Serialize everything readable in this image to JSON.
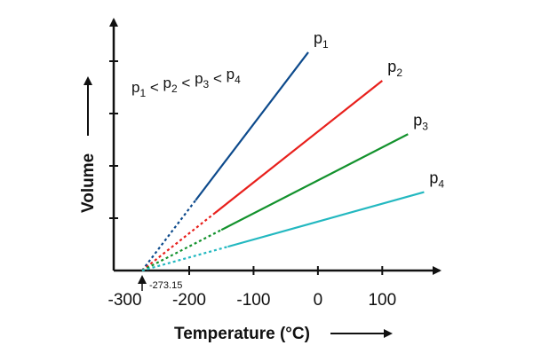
{
  "chart_data": {
    "type": "line",
    "title": "",
    "xlabel": "Temperature (°C)",
    "ylabel": "Volume",
    "xlim": [
      -300,
      170
    ],
    "ylim": [
      0,
      1
    ],
    "x_ticks": [
      -300,
      -200,
      -100,
      0,
      100
    ],
    "x_tick_labels": [
      "-300",
      "-200",
      "-100",
      "0",
      "100"
    ],
    "y_tick_count": 4,
    "grid": false,
    "extrapolation_origin": {
      "x": -273.15,
      "label": "-273.15"
    },
    "relation": {
      "symbol": "p",
      "subscripts": [
        "1",
        "2",
        "3",
        "4"
      ],
      "separator": "<"
    },
    "series": [
      {
        "name": "p1",
        "base": "p",
        "sub": "1",
        "color": "#0d4a8c",
        "dashed_x": [
          -273.15,
          -190
        ],
        "solid_x": [
          -190,
          -15
        ],
        "y_end": 0.882
      },
      {
        "name": "p2",
        "base": "p",
        "sub": "2",
        "color": "#e8201c",
        "dashed_x": [
          -273.15,
          -160
        ],
        "solid_x": [
          -160,
          100
        ],
        "y_end": 0.767
      },
      {
        "name": "p3",
        "base": "p",
        "sub": "3",
        "color": "#13922d",
        "dashed_x": [
          -273.15,
          -150
        ],
        "solid_x": [
          -150,
          140
        ],
        "y_end": 0.551
      },
      {
        "name": "p4",
        "base": "p",
        "sub": "4",
        "color": "#23b8c0",
        "dashed_x": [
          -273.15,
          -140
        ],
        "solid_x": [
          -140,
          165
        ],
        "y_end": 0.317
      }
    ]
  }
}
